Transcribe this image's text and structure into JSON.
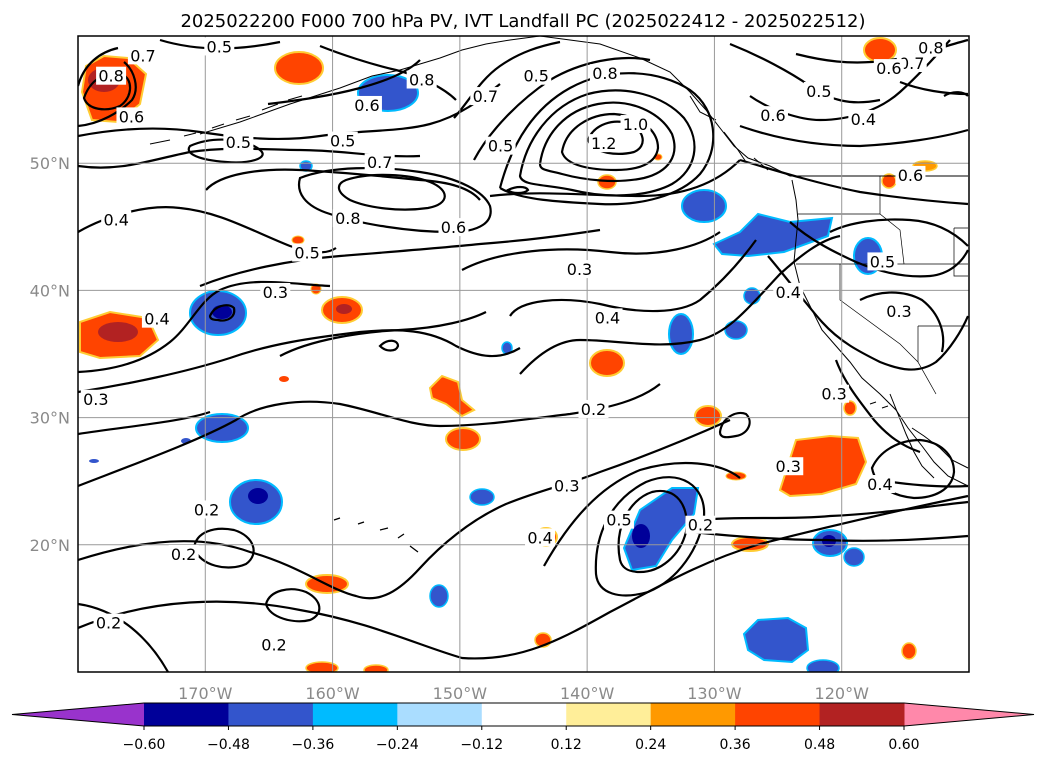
{
  "figure": {
    "title": "2025022200 F000 700 hPa PV, IVT Landfall PC (2025022412 - 2025022512)"
  },
  "map": {
    "extent": {
      "lon": [
        -180,
        -110
      ],
      "lat": [
        10,
        60
      ]
    },
    "gridlines": true,
    "lat_ticks": [
      {
        "value": 20,
        "label": "20°N"
      },
      {
        "value": 30,
        "label": "30°N"
      },
      {
        "value": 40,
        "label": "40°N"
      },
      {
        "value": 50,
        "label": "50°N"
      }
    ],
    "lon_ticks": [
      {
        "value": -170,
        "label": "170°W"
      },
      {
        "value": -160,
        "label": "160°W"
      },
      {
        "value": -150,
        "label": "150°W"
      },
      {
        "value": -140,
        "label": "140°W"
      },
      {
        "value": -130,
        "label": "130°W"
      },
      {
        "value": -120,
        "label": "120°W"
      }
    ]
  },
  "colorbar": {
    "orientation": "horizontal",
    "extend": "both",
    "levels": [
      -0.6,
      -0.48,
      -0.36,
      -0.24,
      -0.12,
      0.12,
      0.24,
      0.36,
      0.48,
      0.6
    ],
    "tick_labels": [
      "−0.60",
      "−0.48",
      "−0.36",
      "−0.24",
      "−0.12",
      "0.12",
      "0.24",
      "0.36",
      "0.48",
      "0.60"
    ],
    "colors": [
      "#9933cc",
      "#000099",
      "#3355cc",
      "#00bbff",
      "#aaddff",
      "#ffffff",
      "#ffee99",
      "#ff9900",
      "#ff4400",
      "#b22222",
      "#ff88aa"
    ]
  },
  "contour_labels": [
    {
      "text": "0.5",
      "lon": -168.9,
      "lat": 59.1
    },
    {
      "text": "0.7",
      "lon": -174.9,
      "lat": 58.4
    },
    {
      "text": "0.8",
      "lon": -177.4,
      "lat": 56.8
    },
    {
      "text": "0.8",
      "lon": -153.0,
      "lat": 56.5
    },
    {
      "text": "0.6",
      "lon": -157.3,
      "lat": 54.5
    },
    {
      "text": "0.7",
      "lon": -148.0,
      "lat": 55.2
    },
    {
      "text": "0.5",
      "lon": -144.0,
      "lat": 56.8
    },
    {
      "text": "0.8",
      "lon": -138.6,
      "lat": 57.0
    },
    {
      "text": "1.0",
      "lon": -136.2,
      "lat": 53.0
    },
    {
      "text": "1.2",
      "lon": -138.7,
      "lat": 51.5
    },
    {
      "text": "0.5",
      "lon": -146.8,
      "lat": 51.3
    },
    {
      "text": "0.6",
      "lon": -175.8,
      "lat": 53.6
    },
    {
      "text": "0.5",
      "lon": -167.4,
      "lat": 51.6
    },
    {
      "text": "0.5",
      "lon": -159.2,
      "lat": 51.7
    },
    {
      "text": "0.7",
      "lon": -156.3,
      "lat": 50.0
    },
    {
      "text": "0.4",
      "lon": -177.0,
      "lat": 45.5
    },
    {
      "text": "0.8",
      "lon": -158.8,
      "lat": 45.6
    },
    {
      "text": "0.6",
      "lon": -150.5,
      "lat": 44.9
    },
    {
      "text": "0.5",
      "lon": -162.0,
      "lat": 42.9
    },
    {
      "text": "0.3",
      "lon": -140.6,
      "lat": 41.6
    },
    {
      "text": "0.3",
      "lon": -164.5,
      "lat": 39.8
    },
    {
      "text": "0.4",
      "lon": -173.8,
      "lat": 37.7
    },
    {
      "text": "0.4",
      "lon": -138.4,
      "lat": 37.8
    },
    {
      "text": "0.3",
      "lon": -178.6,
      "lat": 31.4
    },
    {
      "text": "0.2",
      "lon": -139.5,
      "lat": 30.6
    },
    {
      "text": "0.6",
      "lon": -125.4,
      "lat": 53.7
    },
    {
      "text": "0.5",
      "lon": -121.8,
      "lat": 55.6
    },
    {
      "text": "0.4",
      "lon": -118.3,
      "lat": 53.4
    },
    {
      "text": "0.6",
      "lon": -114.6,
      "lat": 49.0
    },
    {
      "text": "0.5",
      "lon": -116.8,
      "lat": 42.2
    },
    {
      "text": "0.4",
      "lon": -124.2,
      "lat": 39.8
    },
    {
      "text": "0.3",
      "lon": -115.5,
      "lat": 38.3
    },
    {
      "text": "0.3",
      "lon": -120.6,
      "lat": 31.8
    },
    {
      "text": "0.3",
      "lon": -124.2,
      "lat": 26.1
    },
    {
      "text": "0.4",
      "lon": -117.0,
      "lat": 24.7
    },
    {
      "text": "0.8",
      "lon": -113.0,
      "lat": 59.0
    },
    {
      "text": "0.7",
      "lon": -114.5,
      "lat": 57.8
    },
    {
      "text": "0.6",
      "lon": -116.3,
      "lat": 57.4
    },
    {
      "text": "0.3",
      "lon": -141.6,
      "lat": 24.6
    },
    {
      "text": "0.5",
      "lon": -137.5,
      "lat": 21.9
    },
    {
      "text": "0.4",
      "lon": -143.7,
      "lat": 20.5
    },
    {
      "text": "0.2",
      "lon": -131.1,
      "lat": 21.5
    },
    {
      "text": "0.2",
      "lon": -169.9,
      "lat": 22.7
    },
    {
      "text": "0.2",
      "lon": -171.7,
      "lat": 19.2
    },
    {
      "text": "0.2",
      "lon": -164.6,
      "lat": 12.1
    },
    {
      "text": "0.2",
      "lon": -177.6,
      "lat": 13.8
    }
  ]
}
